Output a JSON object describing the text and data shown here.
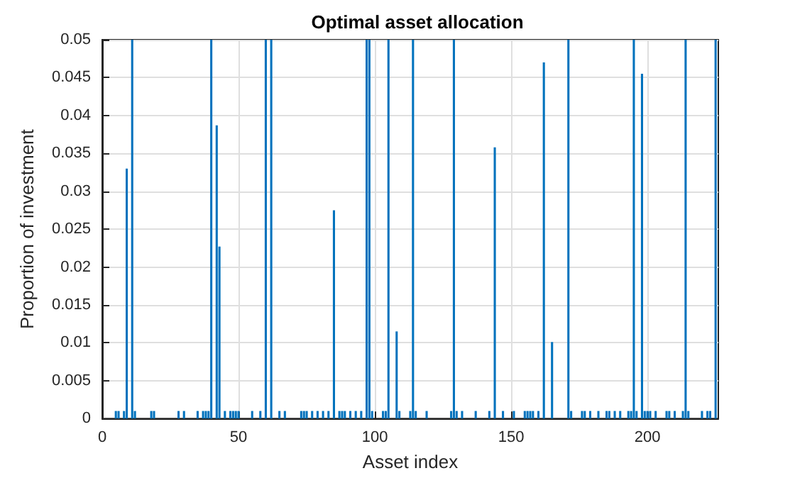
{
  "chart_data": {
    "type": "bar",
    "title": "Optimal asset allocation",
    "xlabel": "Asset index",
    "ylabel": "Proportion of investment",
    "x": [
      1,
      2,
      3,
      4,
      5,
      6,
      7,
      8,
      9,
      10,
      11,
      12,
      13,
      14,
      15,
      16,
      17,
      18,
      19,
      20,
      21,
      22,
      23,
      24,
      25,
      26,
      27,
      28,
      29,
      30,
      31,
      32,
      33,
      34,
      35,
      36,
      37,
      38,
      39,
      40,
      41,
      42,
      43,
      44,
      45,
      46,
      47,
      48,
      49,
      50,
      51,
      52,
      53,
      54,
      55,
      56,
      57,
      58,
      59,
      60,
      61,
      62,
      63,
      64,
      65,
      66,
      67,
      68,
      69,
      70,
      71,
      72,
      73,
      74,
      75,
      76,
      77,
      78,
      79,
      80,
      81,
      82,
      83,
      84,
      85,
      86,
      87,
      88,
      89,
      90,
      91,
      92,
      93,
      94,
      95,
      96,
      97,
      98,
      99,
      100,
      101,
      102,
      103,
      104,
      105,
      106,
      107,
      108,
      109,
      110,
      111,
      112,
      113,
      114,
      115,
      116,
      117,
      118,
      119,
      120,
      121,
      122,
      123,
      124,
      125,
      126,
      127,
      128,
      129,
      130,
      131,
      132,
      133,
      134,
      135,
      136,
      137,
      138,
      139,
      140,
      141,
      142,
      143,
      144,
      145,
      146,
      147,
      148,
      149,
      150,
      151,
      152,
      153,
      154,
      155,
      156,
      157,
      158,
      159,
      160,
      161,
      162,
      163,
      164,
      165,
      166,
      167,
      168,
      169,
      170,
      171,
      172,
      173,
      174,
      175,
      176,
      177,
      178,
      179,
      180,
      181,
      182,
      183,
      184,
      185,
      186,
      187,
      188,
      189,
      190,
      191,
      192,
      193,
      194,
      195,
      196,
      197,
      198,
      199,
      200,
      201,
      202,
      203,
      204,
      205,
      206,
      207,
      208,
      209,
      210,
      211,
      212,
      213,
      214,
      215,
      216,
      217,
      218,
      219,
      220,
      221,
      222,
      223,
      224,
      225
    ],
    "values": [
      0,
      0,
      0,
      0,
      0.001,
      0.001,
      0,
      0.001,
      0.033,
      0,
      0.05,
      0.001,
      0,
      0,
      0,
      0,
      0,
      0.001,
      0.001,
      0,
      0,
      0,
      0,
      0,
      0,
      0,
      0,
      0.001,
      0,
      0.001,
      0,
      0,
      0,
      0,
      0.001,
      0,
      0.001,
      0.001,
      0.001,
      0.05,
      0,
      0.0387,
      0.0227,
      0,
      0.001,
      0,
      0.001,
      0.001,
      0.001,
      0.001,
      0,
      0,
      0,
      0,
      0.001,
      0,
      0,
      0.001,
      0,
      0.05,
      0,
      0.05,
      0,
      0,
      0.001,
      0,
      0.001,
      0,
      0,
      0,
      0,
      0,
      0.001,
      0.001,
      0.001,
      0,
      0.001,
      0,
      0.001,
      0,
      0.001,
      0,
      0.001,
      0,
      0.0275,
      0,
      0.001,
      0.001,
      0.001,
      0,
      0.001,
      0,
      0.001,
      0,
      0.001,
      0,
      0.05,
      0.05,
      0.001,
      0,
      0,
      0,
      0.001,
      0.001,
      0.05,
      0,
      0,
      0.0115,
      0.001,
      0,
      0,
      0,
      0.001,
      0.05,
      0.001,
      0,
      0,
      0,
      0.001,
      0,
      0,
      0,
      0,
      0,
      0,
      0,
      0,
      0.001,
      0.05,
      0.001,
      0,
      0.001,
      0,
      0,
      0,
      0,
      0.001,
      0,
      0,
      0,
      0,
      0.001,
      0,
      0.0358,
      0,
      0,
      0.001,
      0,
      0,
      0,
      0.001,
      0,
      0,
      0,
      0.001,
      0.001,
      0.001,
      0.001,
      0,
      0.001,
      0,
      0.047,
      0,
      0,
      0.0101,
      0,
      0,
      0,
      0,
      0,
      0.05,
      0.001,
      0,
      0,
      0,
      0.001,
      0.001,
      0,
      0.001,
      0,
      0,
      0.001,
      0,
      0,
      0.001,
      0.001,
      0,
      0.001,
      0,
      0.001,
      0,
      0,
      0.001,
      0.001,
      0.05,
      0.001,
      0,
      0.0455,
      0.001,
      0.001,
      0.001,
      0,
      0.001,
      0,
      0,
      0,
      0.001,
      0.001,
      0,
      0.001,
      0,
      0,
      0.001,
      0.05,
      0.001,
      0,
      0,
      0,
      0,
      0.001,
      0,
      0.001,
      0.001,
      0,
      0.05
    ],
    "color": "#0072bd",
    "xlim": [
      0,
      226
    ],
    "xticks": [
      0,
      50,
      100,
      150,
      200
    ],
    "ylim": [
      0,
      0.05
    ],
    "yticks": [
      0,
      0.005,
      0.01,
      0.015,
      0.02,
      0.025,
      0.03,
      0.035,
      0.04,
      0.045,
      0.05
    ],
    "grid": true
  }
}
